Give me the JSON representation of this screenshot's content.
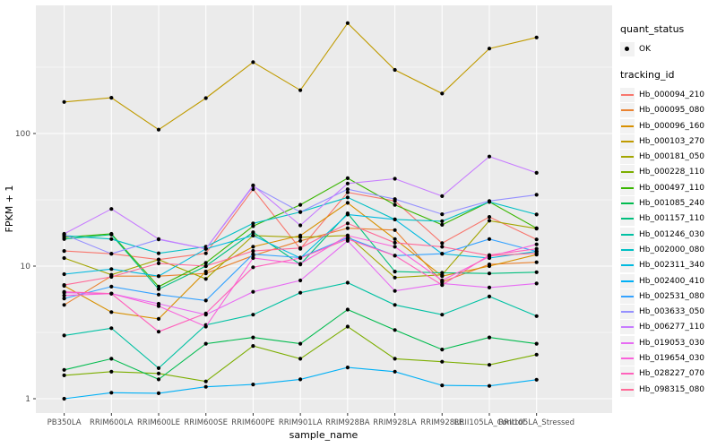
{
  "chart_data": {
    "type": "line",
    "title": "",
    "xlabel": "sample_name",
    "ylabel": "FPKM + 1",
    "y_scale": "log10",
    "y_tick_labels": [
      "1",
      "10",
      "100"
    ],
    "y_ticks": [
      1,
      10,
      100
    ],
    "y_minor_ticks": [
      3.1623,
      31.623,
      316.23
    ],
    "ylim": [
      0.95,
      750
    ],
    "grid": "on",
    "panel_bg": "#EBEBEB",
    "grid_color": "#FFFFFF",
    "axis_text_color": "#4D4D4D",
    "tick_mark_color": "#333333",
    "point_color": "#000000",
    "categories": [
      "PB350LA",
      "RRIM600LA",
      "RRIM600LE",
      "RRIM600SE",
      "RRIM600PE",
      "RRIM901LA",
      "RRIM928BA",
      "RRIM928LA",
      "RRIM928LE",
      "RRII105LA_Control",
      "RRII105LA_Stressed"
    ],
    "series": [
      {
        "name": "Hb_000094_210",
        "color": "#F8766D",
        "values": [
          13,
          12.4,
          11.2,
          12.5,
          38,
          13.5,
          36,
          31,
          14.9,
          23.5,
          15.9
        ]
      },
      {
        "name": "Hb_000095_080",
        "color": "#EA8331",
        "values": [
          5.1,
          8.4,
          8.4,
          8.8,
          12,
          15.5,
          19.3,
          18.7,
          7.6,
          10.3,
          10.7
        ]
      },
      {
        "name": "Hb_000096_160",
        "color": "#D89000",
        "values": [
          7.1,
          4.5,
          4.0,
          9.1,
          14,
          17,
          30,
          16,
          8.4,
          10,
          12.2
        ]
      },
      {
        "name": "Hb_000103_270",
        "color": "#C09B00",
        "values": [
          173,
          186,
          107,
          185,
          345,
          212,
          680,
          302,
          200,
          437,
          530
        ]
      },
      {
        "name": "Hb_000181_050",
        "color": "#A3A500",
        "values": [
          11.5,
          8.6,
          11.2,
          8.0,
          17,
          16.5,
          17,
          8.2,
          8.6,
          22,
          19.2
        ]
      },
      {
        "name": "Hb_000228_110",
        "color": "#7CAE00",
        "values": [
          1.5,
          1.6,
          1.55,
          1.35,
          2.5,
          2.0,
          3.5,
          2.0,
          1.9,
          1.8,
          2.15
        ]
      },
      {
        "name": "Hb_000497_110",
        "color": "#39B600",
        "values": [
          16.5,
          17.5,
          7.0,
          10.6,
          20,
          29,
          46,
          29,
          20.5,
          30.5,
          19.3
        ]
      },
      {
        "name": "Hb_001085_240",
        "color": "#00BB4E",
        "values": [
          1.65,
          2.0,
          1.4,
          2.6,
          2.9,
          2.6,
          4.7,
          3.3,
          2.35,
          2.9,
          2.6
        ]
      },
      {
        "name": "Hb_001157_110",
        "color": "#00BF7D",
        "values": [
          16,
          17.3,
          6.7,
          10,
          18,
          10.3,
          25,
          9.1,
          8.9,
          8.8,
          9.0
        ]
      },
      {
        "name": "Hb_001246_030",
        "color": "#00C1A3",
        "values": [
          3.0,
          3.4,
          1.7,
          3.6,
          4.3,
          6.3,
          7.5,
          5.1,
          4.3,
          5.9,
          4.2
        ]
      },
      {
        "name": "Hb_002000_080",
        "color": "#00BFC4",
        "values": [
          17,
          16,
          12.5,
          14,
          21,
          25.6,
          33,
          22.5,
          21.8,
          30.5,
          24.5
        ]
      },
      {
        "name": "Hb_002311_340",
        "color": "#00BAE0",
        "values": [
          8.7,
          9.5,
          8.4,
          13.5,
          17,
          11.5,
          24.5,
          22.5,
          12.4,
          11.5,
          12.9
        ]
      },
      {
        "name": "Hb_002400_410",
        "color": "#00B0F6",
        "values": [
          1.0,
          1.11,
          1.1,
          1.23,
          1.28,
          1.4,
          1.72,
          1.6,
          1.26,
          1.25,
          1.39
        ]
      },
      {
        "name": "Hb_002531_080",
        "color": "#35A2FF",
        "values": [
          5.7,
          7.0,
          6.1,
          5.5,
          12.3,
          11.6,
          16.4,
          12,
          12.4,
          16,
          12.9
        ]
      },
      {
        "name": "Hb_003633_050",
        "color": "#9590FF",
        "values": [
          17.3,
          12.4,
          15.9,
          13.5,
          40,
          25.6,
          38,
          32,
          24.6,
          31,
          34.5
        ]
      },
      {
        "name": "Hb_006277_110",
        "color": "#C77CFF",
        "values": [
          17.5,
          27,
          16,
          13.5,
          40.6,
          20.3,
          42,
          45.6,
          33.7,
          67,
          50.5
        ]
      },
      {
        "name": "Hb_019053_030",
        "color": "#E76BF3",
        "values": [
          6.3,
          6.2,
          5.2,
          4.3,
          6.4,
          7.8,
          15.5,
          6.5,
          7.4,
          6.9,
          7.4
        ]
      },
      {
        "name": "Hb_019654_030",
        "color": "#FA62DB",
        "values": [
          6.0,
          6.2,
          5.0,
          3.5,
          11.5,
          10.4,
          17,
          14,
          7.8,
          11.8,
          14.6
        ]
      },
      {
        "name": "Hb_028227_070",
        "color": "#FF62BC",
        "values": [
          6.4,
          6.2,
          3.2,
          4.4,
          9.8,
          11.5,
          16,
          12,
          7.2,
          12.1,
          13.5
        ]
      },
      {
        "name": "Hb_098315_080",
        "color": "#FF6A98",
        "values": [
          7.2,
          8.3,
          10.5,
          10,
          13,
          13.7,
          21,
          15,
          14,
          12,
          12.5
        ]
      }
    ],
    "legend": {
      "position": "right",
      "title_quant": "quant_status",
      "quant_items": [
        {
          "label": "OK"
        }
      ],
      "title_tracking": "tracking_id"
    }
  }
}
